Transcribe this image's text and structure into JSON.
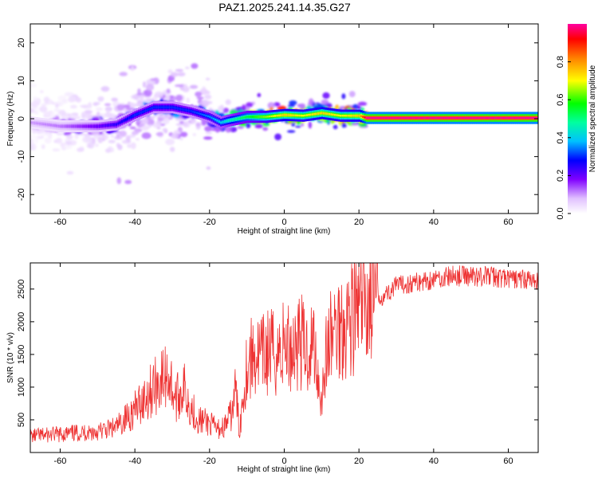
{
  "figure": {
    "title": "PAZ1.2025.241.14.35.G27"
  },
  "chart_data": [
    {
      "type": "heatmap",
      "title": "PAZ1.2025.241.14.35.G27",
      "xlabel": "Height of straight line (km)",
      "ylabel": "Frequency (Hz)",
      "xlim": [
        -68,
        68
      ],
      "ylim": [
        -25,
        25
      ],
      "xticks": [
        -60,
        -40,
        -20,
        0,
        20,
        40,
        60
      ],
      "xtick_labels": [
        "-60",
        "-40",
        "-20",
        "0",
        "20",
        "40",
        "60"
      ],
      "yticks": [
        -20,
        -10,
        0,
        10,
        20
      ],
      "ytick_labels": [
        "-20",
        "-10",
        "0",
        "10",
        "20"
      ],
      "colorbar": {
        "label": "Normalized spectral amplitude",
        "range": [
          0,
          1
        ],
        "ticks": [
          0.0,
          0.2,
          0.4,
          0.6,
          0.8
        ],
        "tick_labels": [
          "0.0",
          "0.2",
          "0.4",
          "0.6",
          "0.8"
        ]
      },
      "ridge": {
        "x": [
          -68,
          -60,
          -50,
          -45,
          -40,
          -35,
          -30,
          -25,
          -20,
          -17,
          -15,
          -10,
          -5,
          0,
          5,
          10,
          15,
          20,
          22,
          30,
          40,
          50,
          60,
          68
        ],
        "frequency": [
          -1,
          -2,
          -2,
          -1.5,
          1,
          3,
          3,
          2,
          0.5,
          -1,
          -0.5,
          0.5,
          0.5,
          1,
          0.8,
          1.5,
          0.8,
          0.8,
          0.2,
          0.2,
          0.2,
          0.2,
          0.2,
          0.2
        ],
        "amplitude": [
          0.1,
          0.12,
          0.2,
          0.25,
          0.3,
          0.3,
          0.3,
          0.3,
          0.35,
          0.4,
          0.45,
          0.55,
          0.65,
          0.75,
          0.7,
          0.75,
          0.7,
          0.75,
          1.0,
          1.0,
          1.0,
          1.0,
          1.0,
          1.0
        ]
      }
    },
    {
      "type": "line",
      "xlabel": "Height of straight line (km)",
      "ylabel": "SNR (10 * v/v)",
      "xlim": [
        -68,
        68
      ],
      "ylim": [
        0,
        2900
      ],
      "xticks": [
        -60,
        -40,
        -20,
        0,
        20,
        40,
        60
      ],
      "xtick_labels": [
        "-60",
        "-40",
        "-20",
        "0",
        "20",
        "40",
        "60"
      ],
      "yticks": [
        500,
        1000,
        1500,
        2000,
        2500
      ],
      "ytick_labels": [
        "500",
        "1000",
        "1500",
        "2000",
        "2500"
      ],
      "color": "#ee3333",
      "series": [
        {
          "name": "SNR",
          "x": [
            -68,
            -60,
            -55,
            -50,
            -45,
            -42,
            -40,
            -38,
            -35,
            -33,
            -31,
            -29,
            -27,
            -25,
            -23,
            -20,
            -18,
            -16,
            -14,
            -13,
            -12,
            -11,
            -10,
            -8,
            -6,
            -4,
            -2,
            0,
            2,
            4,
            6,
            8,
            9,
            10,
            11,
            12,
            14,
            16,
            18,
            20,
            22,
            25,
            28,
            30,
            35,
            40,
            45,
            50,
            55,
            60,
            65,
            68
          ],
          "y": [
            250,
            280,
            300,
            320,
            380,
            550,
            650,
            800,
            1000,
            1100,
            1200,
            800,
            1000,
            700,
            500,
            450,
            350,
            400,
            600,
            1000,
            300,
            900,
            1350,
            1500,
            1450,
            1550,
            1500,
            1650,
            1600,
            1750,
            1550,
            1700,
            1200,
            800,
            1400,
            1700,
            1900,
            2000,
            2100,
            2150,
            2300,
            2350,
            2450,
            2550,
            2600,
            2650,
            2700,
            2700,
            2700,
            2650,
            2650,
            2600
          ]
        }
      ]
    }
  ]
}
